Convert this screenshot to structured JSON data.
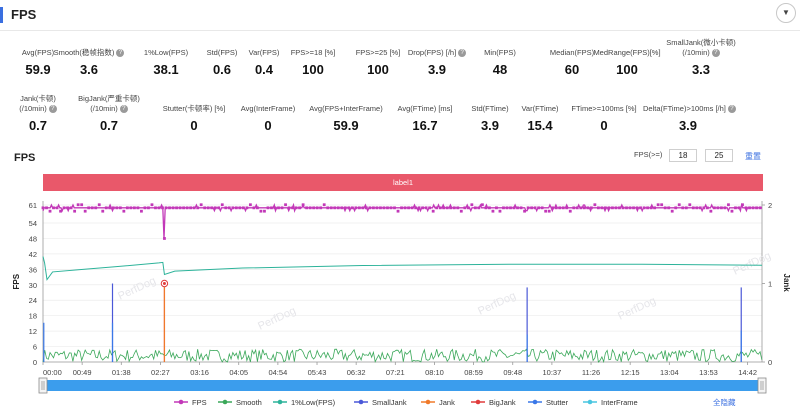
{
  "header": {
    "title": "FPS",
    "collapse_icon": "chevron-down-icon"
  },
  "metrics_row1": [
    {
      "label": "Avg(FPS)",
      "value": "59.9"
    },
    {
      "label": "Smooth(稳帧指数)",
      "value": "3.6",
      "help": true
    },
    {
      "label": "1%Low(FPS)",
      "value": "38.1"
    },
    {
      "label": "Std(FPS)",
      "value": "0.6"
    },
    {
      "label": "Var(FPS)",
      "value": "0.4"
    },
    {
      "label": "FPS>=18 [%]",
      "value": "100"
    },
    {
      "label": "FPS>=25 [%]",
      "value": "100"
    },
    {
      "label": "Drop(FPS) [/h]",
      "value": "3.9",
      "help": true
    },
    {
      "label": "Min(FPS)",
      "value": "48"
    },
    {
      "label": "Median(FPS)",
      "value": "60"
    },
    {
      "label": "MedRange(FPS)[%]",
      "value": "100"
    },
    {
      "label": "SmallJank(微小卡顿)",
      "label2": "(/10min)",
      "value": "3.3",
      "help": true
    }
  ],
  "metrics_row2": [
    {
      "label": "Jank(卡顿)",
      "label2": "(/10min)",
      "value": "0.7",
      "help": true
    },
    {
      "label": "BigJank(严重卡顿)",
      "label2": "(/10min)",
      "value": "0.7",
      "help": true
    },
    {
      "label": "Stutter(卡顿率) [%]",
      "value": "0"
    },
    {
      "label": "Avg(InterFrame)",
      "value": "0"
    },
    {
      "label": "Avg(FPS+InterFrame)",
      "value": "59.9"
    },
    {
      "label": "Avg(FTime) [ms]",
      "value": "16.7"
    },
    {
      "label": "Std(FTime)",
      "value": "3.9"
    },
    {
      "label": "Var(FTime)",
      "value": "15.4"
    },
    {
      "label": "FTime>=100ms [%]",
      "value": "0"
    },
    {
      "label": "Delta(FTime)>100ms [/h]",
      "value": "3.9",
      "help": true
    }
  ],
  "chart_section": {
    "title": "FPS",
    "filter_label": "FPS(>=)",
    "filter_values": [
      "18",
      "25"
    ],
    "reset_label": "重置",
    "band_label": "label1",
    "watermark": "PerfDog",
    "toggle_all_label": "全隐藏"
  },
  "colors": {
    "accent": "#3a6fe0",
    "band": "#e9586a",
    "fps": "#c238b8",
    "smooth": "#3ba85a",
    "low1": "#2db39a",
    "smalljank": "#4a58d8",
    "jank": "#f07a2a",
    "bigjank": "#e03c3c",
    "stutter": "#3a78e8",
    "interframe": "#49c6e0"
  },
  "chart_data": {
    "type": "line",
    "x_ticks": [
      "00:00",
      "00:49",
      "01:38",
      "02:27",
      "03:16",
      "04:05",
      "04:54",
      "05:43",
      "06:32",
      "07:21",
      "08:10",
      "08:59",
      "09:48",
      "10:37",
      "11:26",
      "12:15",
      "13:04",
      "13:53",
      "14:42"
    ],
    "x_range_seconds": [
      0,
      900
    ],
    "y_left": {
      "label": "FPS",
      "ticks": [
        0,
        6,
        12,
        18,
        24,
        30,
        36,
        42,
        48,
        54,
        61
      ],
      "range": [
        0,
        61
      ]
    },
    "y_right": {
      "label": "Jank",
      "ticks": [
        0,
        1,
        2
      ],
      "range": [
        0,
        2
      ]
    },
    "legend": [
      "FPS",
      "Smooth",
      "1%Low(FPS)",
      "SmallJank",
      "Jank",
      "BigJank",
      "Stutter",
      "InterFrame"
    ],
    "series": [
      {
        "name": "FPS",
        "typical": 59.9,
        "dips": [
          [
            152,
            48
          ]
        ]
      },
      {
        "name": "1%Low(FPS)",
        "points": [
          [
            0,
            41
          ],
          [
            2,
            38.5
          ],
          [
            5,
            32
          ],
          [
            12,
            35
          ],
          [
            50,
            36
          ],
          [
            90,
            37
          ],
          [
            145,
            38.5
          ],
          [
            150,
            38.7
          ],
          [
            152,
            34
          ],
          [
            165,
            35.3
          ],
          [
            250,
            36.5
          ],
          [
            400,
            37.5
          ],
          [
            600,
            38
          ],
          [
            750,
            38
          ],
          [
            900,
            37.6
          ]
        ]
      },
      {
        "name": "Smooth",
        "range": [
          0,
          5
        ]
      },
      {
        "name": "SmallJank",
        "events": [
          [
            87,
            1.0
          ],
          [
            606,
            0.95
          ],
          [
            874,
            0.95
          ]
        ]
      },
      {
        "name": "Jank",
        "events": [
          [
            152,
            1.0
          ]
        ]
      },
      {
        "name": "BigJank",
        "events": [
          [
            152,
            1.0
          ]
        ]
      },
      {
        "name": "Stutter",
        "events": [
          [
            1,
            0.5
          ],
          [
            87,
            0.5
          ],
          [
            606,
            0.35
          ],
          [
            874,
            0.4
          ]
        ]
      },
      {
        "name": "InterFrame",
        "values": []
      }
    ]
  }
}
